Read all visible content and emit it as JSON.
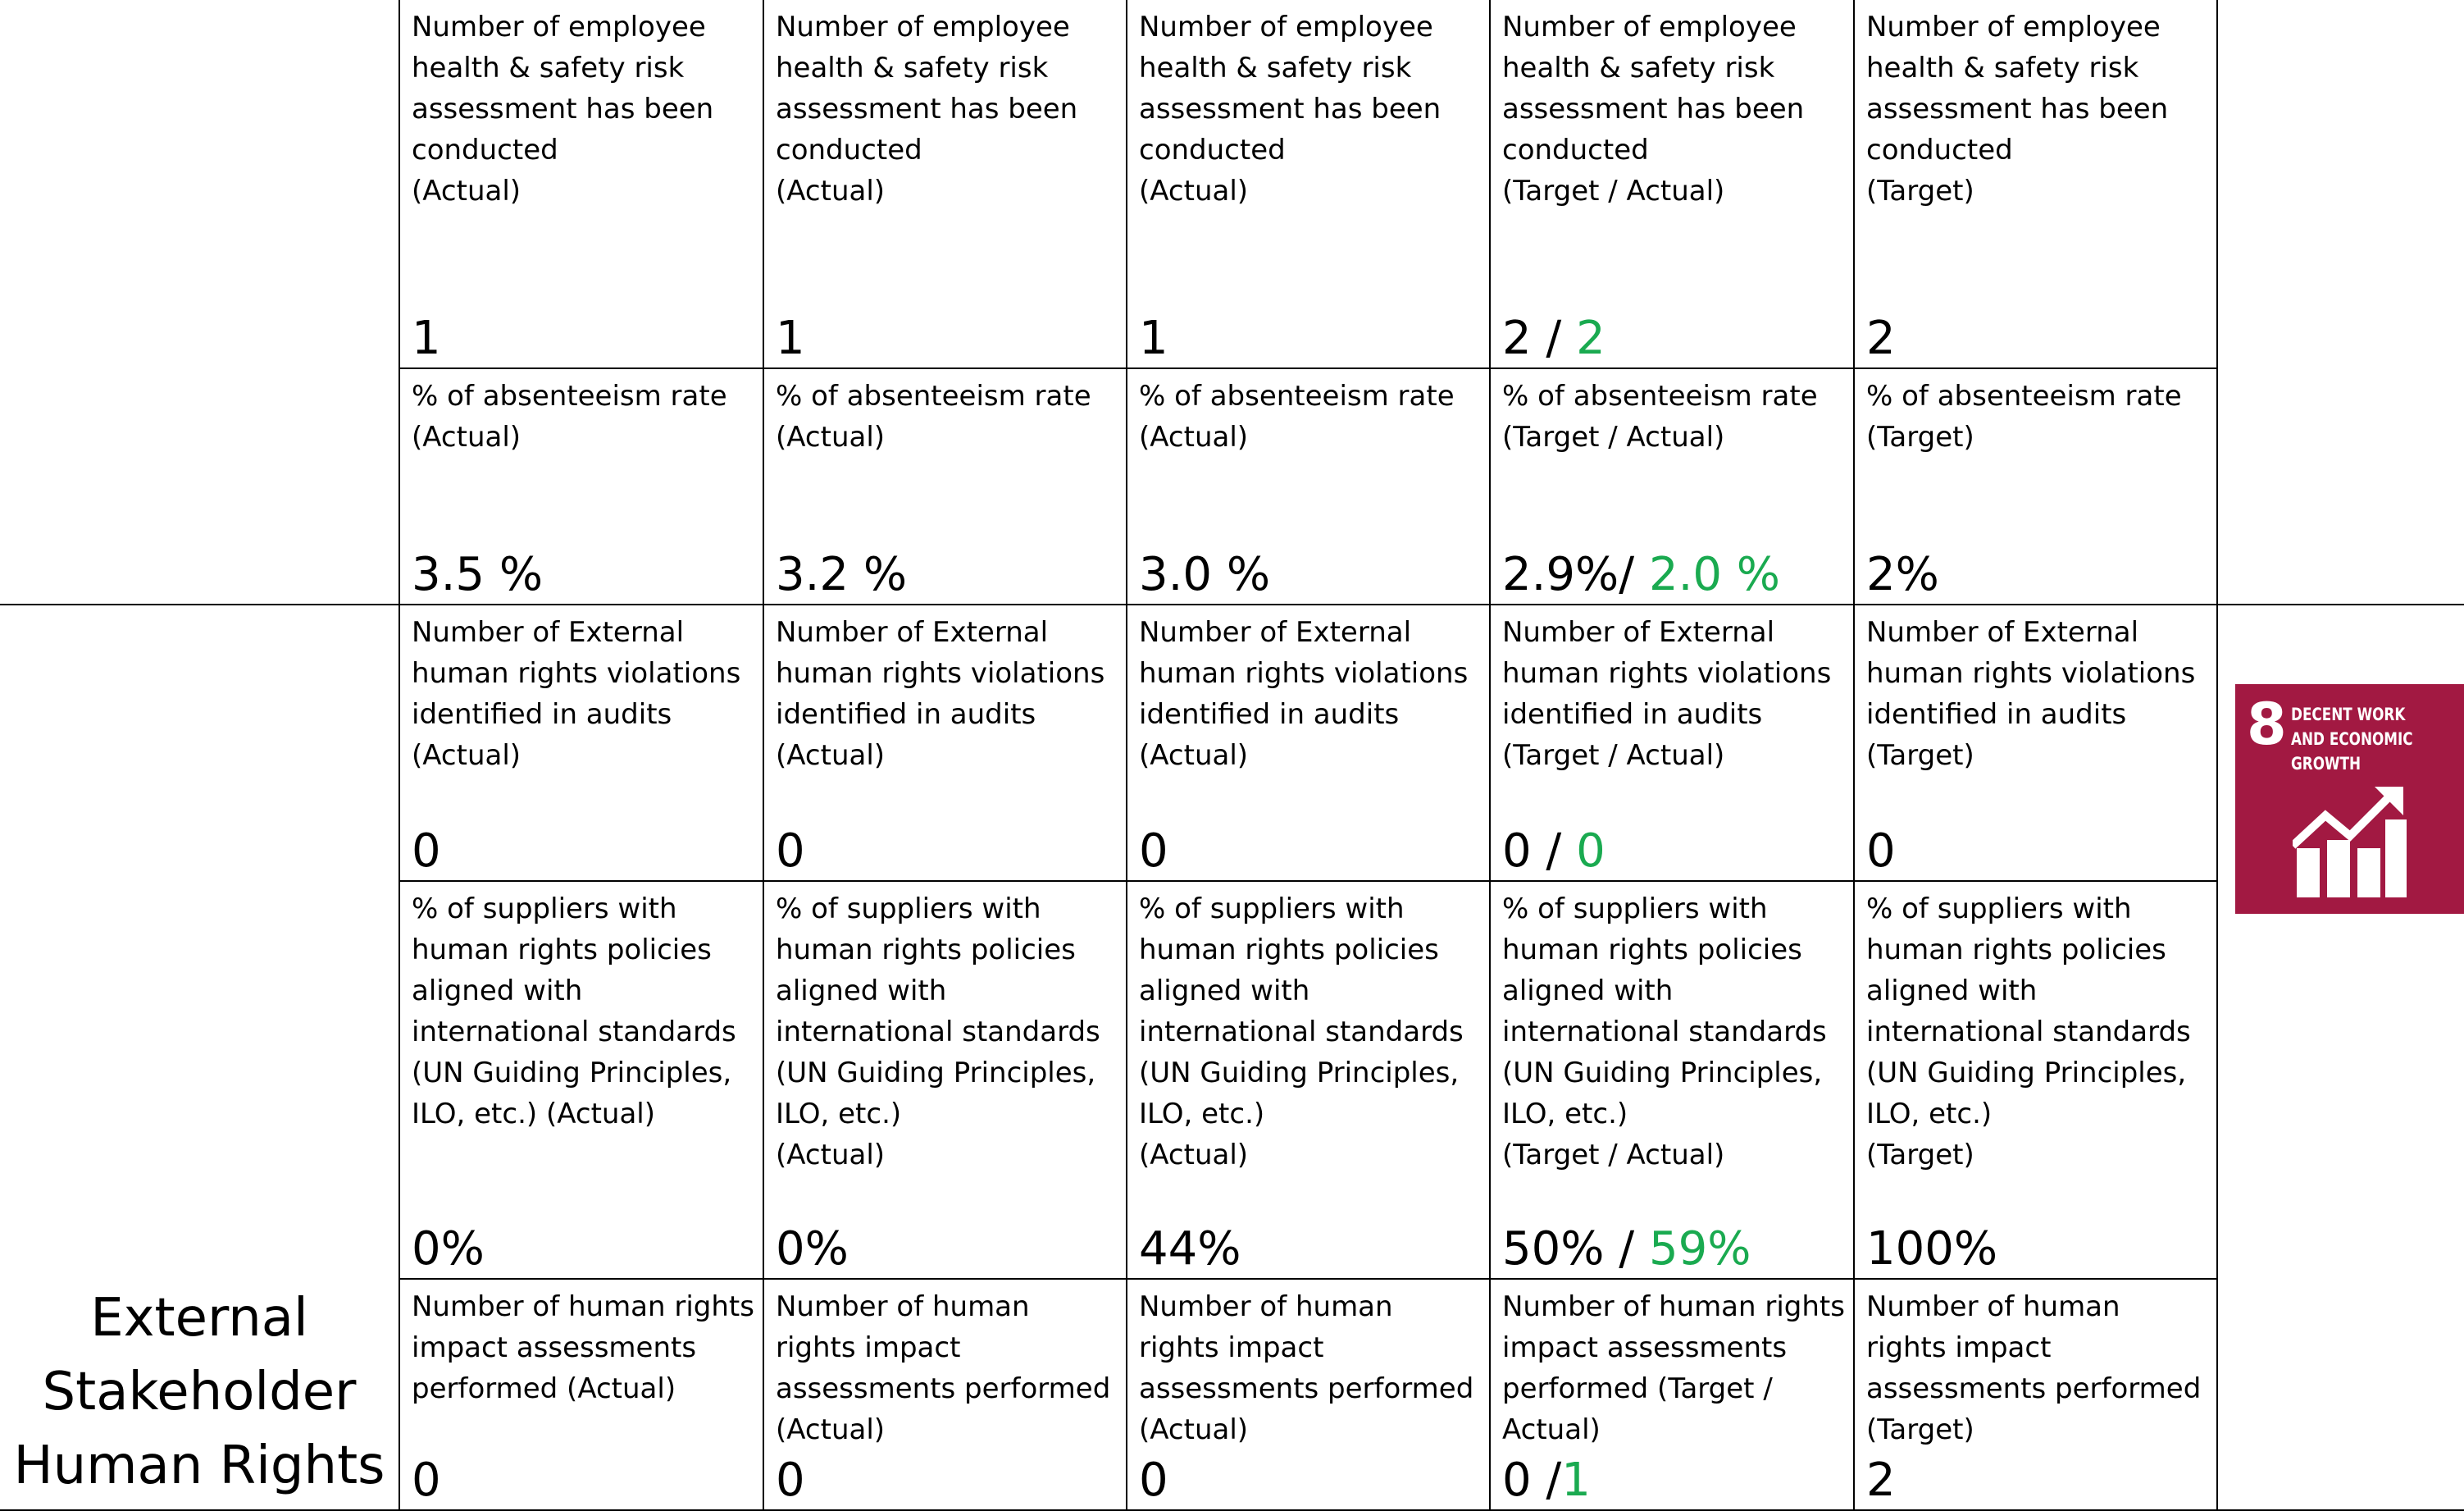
{
  "sections": [
    {
      "rows": [
        {
          "cells": [
            {
              "label": "Number of employee health & safety risk assessment has been conducted\n(Actual)",
              "value": "1"
            },
            {
              "label": "Number of employee health & safety risk assessment has been conducted\n(Actual)",
              "value": "1"
            },
            {
              "label": "Number of employee health & safety risk assessment has been conducted\n(Actual)",
              "value": "1"
            },
            {
              "label": "Number of employee health & safety risk assessment has been conducted\n(Target / Actual)",
              "value": "2 / ",
              "actual": "2"
            },
            {
              "label": "Number of employee health & safety risk assessment has been conducted\n(Target)",
              "value": "2"
            }
          ]
        },
        {
          "cells": [
            {
              "label": "% of absenteeism rate\n(Actual)",
              "value": "3.5 %"
            },
            {
              "label": "% of absenteeism rate\n(Actual)",
              "value": "3.2 %"
            },
            {
              "label": "% of absenteeism rate\n(Actual)",
              "value": "3.0 %"
            },
            {
              "label": "% of absenteeism rate\n(Target / Actual)",
              "value": "2.9%/ ",
              "actual": "2.0 %"
            },
            {
              "label": "% of absenteeism rate\n(Target)",
              "value": "2%"
            }
          ]
        }
      ]
    },
    {
      "label": "External Stakeholder Human Rights",
      "rows": [
        {
          "cells": [
            {
              "label": "Number of External human rights violations identified in audits\n(Actual)",
              "value": "0"
            },
            {
              "label": "Number of External human rights violations identified in audits\n(Actual)",
              "value": "0"
            },
            {
              "label": "Number of External human rights violations identified in audits\n(Actual)",
              "value": "0"
            },
            {
              "label": "Number of External human rights violations identified in audits\n(Target / Actual)",
              "value": "0 / ",
              "actual": "0"
            },
            {
              "label": "Number of External human rights violations identified in audits\n(Target)",
              "value": "0"
            }
          ]
        },
        {
          "cells": [
            {
              "label": "% of suppliers with human rights policies aligned with international standards (UN Guiding Principles, ILO, etc.) (Actual)",
              "value": "0%"
            },
            {
              "label": "% of suppliers with human rights policies aligned with international standards (UN Guiding Principles, ILO, etc.)\n(Actual)",
              "value": "0%"
            },
            {
              "label": "% of suppliers with human rights policies aligned with international standards (UN Guiding Principles, ILO, etc.)\n(Actual)",
              "value": "44%"
            },
            {
              "label": "% of suppliers with human rights policies aligned with international standards (UN Guiding Principles, ILO, etc.)\n(Target / Actual)",
              "value": "50% / ",
              "actual": "59%"
            },
            {
              "label": "% of suppliers with human rights policies aligned with international standards (UN Guiding Principles, ILO, etc.)\n(Target)",
              "value": "100%"
            }
          ]
        },
        {
          "cells": [
            {
              "label": "Number of human rights impact assessments performed (Actual)",
              "value": "0"
            },
            {
              "label": "Number of human rights impact assessments performed (Actual)",
              "value": "0"
            },
            {
              "label": "Number of human rights impact assessments performed (Actual)",
              "value": "0"
            },
            {
              "label": "Number of human rights impact assessments performed (Target / Actual)",
              "value": "0 /",
              "actual": "1"
            },
            {
              "label": "Number of human rights impact assessments performed (Target)",
              "value": "2"
            }
          ]
        }
      ]
    }
  ],
  "badge": {
    "number": "8",
    "title": "DECENT WORK AND ECONOMIC GROWTH"
  }
}
